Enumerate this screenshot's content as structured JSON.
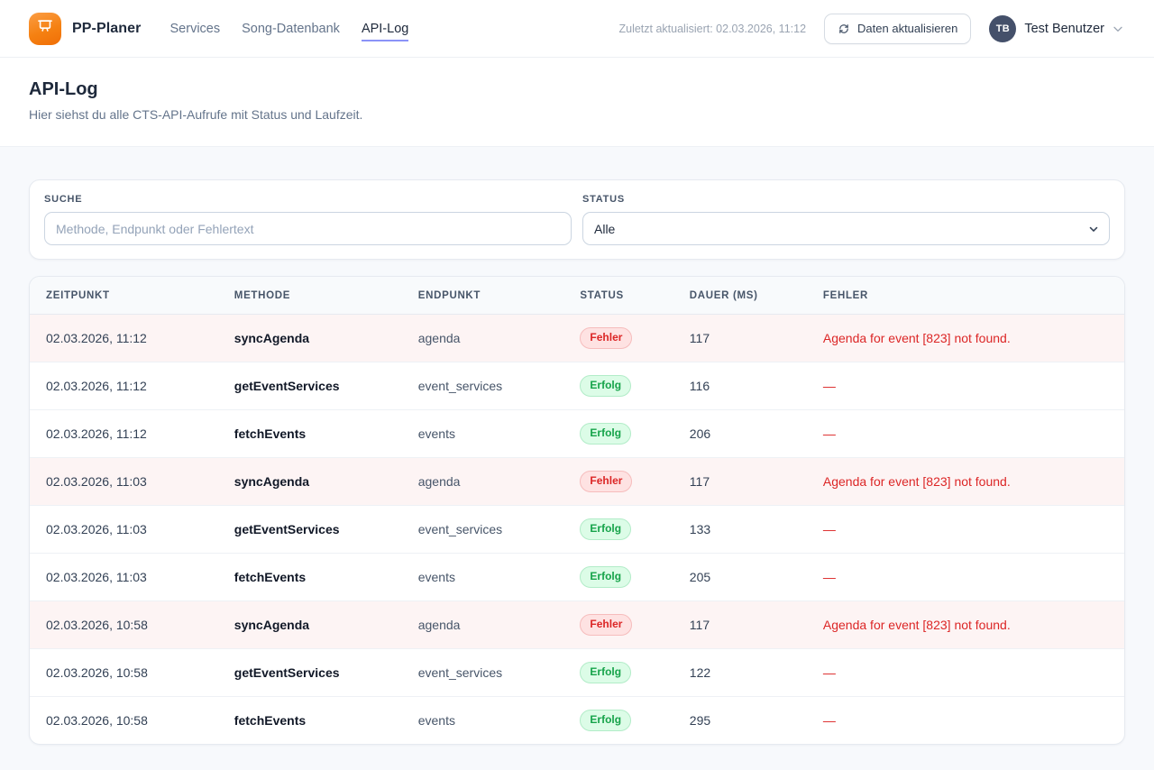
{
  "header": {
    "brand": "PP-Planer",
    "nav": [
      {
        "label": "Services",
        "active": false
      },
      {
        "label": "Song-Datenbank",
        "active": false
      },
      {
        "label": "API-Log",
        "active": true
      }
    ],
    "last_updated": "Zuletzt aktualisiert: 02.03.2026, 11:12",
    "refresh_label": "Daten aktualisieren",
    "user": {
      "initials": "TB",
      "name": "Test Benutzer"
    }
  },
  "page": {
    "title": "API-Log",
    "subtitle": "Hier siehst du alle CTS-API-Aufrufe mit Status und Laufzeit."
  },
  "filters": {
    "search_label": "SUCHE",
    "search_placeholder": "Methode, Endpunkt oder Fehlertext",
    "search_value": "",
    "status_label": "STATUS",
    "status_value": "Alle"
  },
  "table": {
    "columns": [
      "ZEITPUNKT",
      "METHODE",
      "ENDPUNKT",
      "STATUS",
      "DAUER (MS)",
      "FEHLER"
    ],
    "rows": [
      {
        "timestamp": "02.03.2026, 11:12",
        "method": "syncAgenda",
        "endpoint": "agenda",
        "status": "Fehler",
        "status_type": "error",
        "duration": "117",
        "error": "Agenda for event [823] not found."
      },
      {
        "timestamp": "02.03.2026, 11:12",
        "method": "getEventServices",
        "endpoint": "event_services",
        "status": "Erfolg",
        "status_type": "success",
        "duration": "116",
        "error": "—"
      },
      {
        "timestamp": "02.03.2026, 11:12",
        "method": "fetchEvents",
        "endpoint": "events",
        "status": "Erfolg",
        "status_type": "success",
        "duration": "206",
        "error": "—"
      },
      {
        "timestamp": "02.03.2026, 11:03",
        "method": "syncAgenda",
        "endpoint": "agenda",
        "status": "Fehler",
        "status_type": "error",
        "duration": "117",
        "error": "Agenda for event [823] not found."
      },
      {
        "timestamp": "02.03.2026, 11:03",
        "method": "getEventServices",
        "endpoint": "event_services",
        "status": "Erfolg",
        "status_type": "success",
        "duration": "133",
        "error": "—"
      },
      {
        "timestamp": "02.03.2026, 11:03",
        "method": "fetchEvents",
        "endpoint": "events",
        "status": "Erfolg",
        "status_type": "success",
        "duration": "205",
        "error": "—"
      },
      {
        "timestamp": "02.03.2026, 10:58",
        "method": "syncAgenda",
        "endpoint": "agenda",
        "status": "Fehler",
        "status_type": "error",
        "duration": "117",
        "error": "Agenda for event [823] not found."
      },
      {
        "timestamp": "02.03.2026, 10:58",
        "method": "getEventServices",
        "endpoint": "event_services",
        "status": "Erfolg",
        "status_type": "success",
        "duration": "122",
        "error": "—"
      },
      {
        "timestamp": "02.03.2026, 10:58",
        "method": "fetchEvents",
        "endpoint": "events",
        "status": "Erfolg",
        "status_type": "success",
        "duration": "295",
        "error": "—"
      }
    ]
  },
  "colors": {
    "brand_orange": "#f58112",
    "active_tab_underline": "#8b93f8",
    "error_text": "#dc2626",
    "error_badge_bg": "#fee2e2",
    "error_row_bg": "#fdf4f4",
    "success_text": "#16a34a",
    "success_badge_bg": "#dcfce7"
  }
}
